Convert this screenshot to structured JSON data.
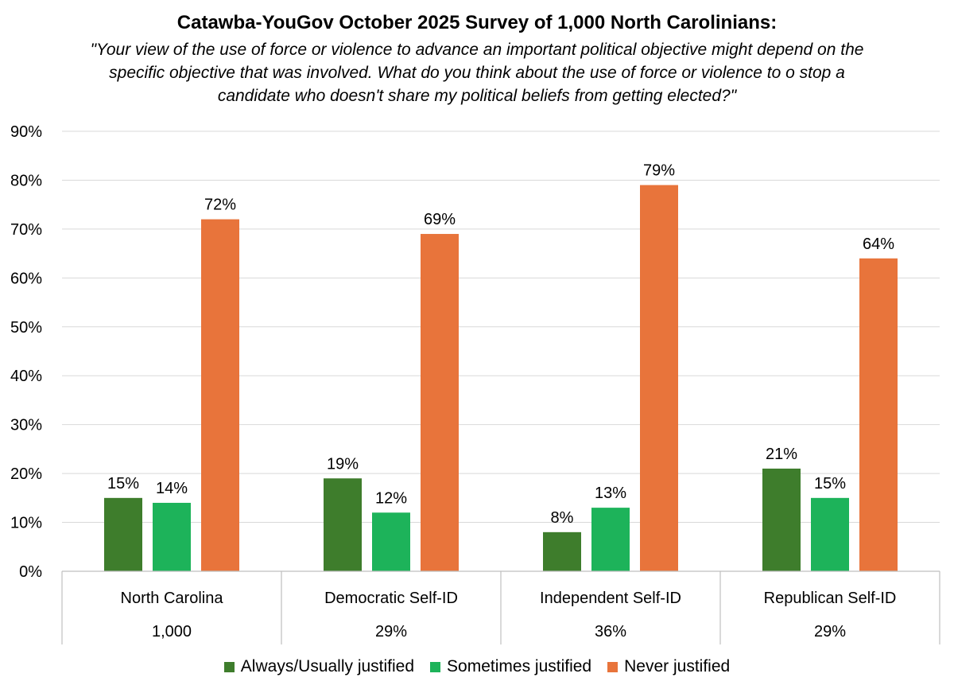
{
  "chart_data": {
    "type": "bar",
    "title": "Catawba-YouGov October 2025 Survey of 1,000 North Carolinians:",
    "subtitle": "\"Your view of the use of force or violence to advance an important political objective might depend on the specific objective that was involved. What do you think about the use of force or violence to o stop a candidate who doesn't share my political beliefs from getting elected?\"",
    "categories": [
      "North Carolina",
      "Democratic Self-ID",
      "Independent Self-ID",
      "Republican Self-ID"
    ],
    "category_sublabels": [
      "1,000",
      "29%",
      "36%",
      "29%"
    ],
    "series": [
      {
        "name": "Always/Usually justified",
        "color": "#3e7d2c",
        "values": [
          15,
          19,
          8,
          21
        ],
        "labels": [
          "15%",
          "19%",
          "8%",
          "21%"
        ]
      },
      {
        "name": "Sometimes justified",
        "color": "#1db35a",
        "values": [
          14,
          12,
          13,
          15
        ],
        "labels": [
          "14%",
          "12%",
          "13%",
          "15%"
        ]
      },
      {
        "name": "Never justified",
        "color": "#e8743b",
        "values": [
          72,
          69,
          79,
          64
        ],
        "labels": [
          "72%",
          "69%",
          "79%",
          "64%"
        ]
      }
    ],
    "ylim": [
      0,
      90
    ],
    "yticks": [
      0,
      10,
      20,
      30,
      40,
      50,
      60,
      70,
      80,
      90
    ],
    "ytick_labels": [
      "0%",
      "10%",
      "20%",
      "30%",
      "40%",
      "50%",
      "60%",
      "70%",
      "80%",
      "90%"
    ],
    "grid": true,
    "legend_position": "bottom",
    "xlabel": "",
    "ylabel": ""
  }
}
